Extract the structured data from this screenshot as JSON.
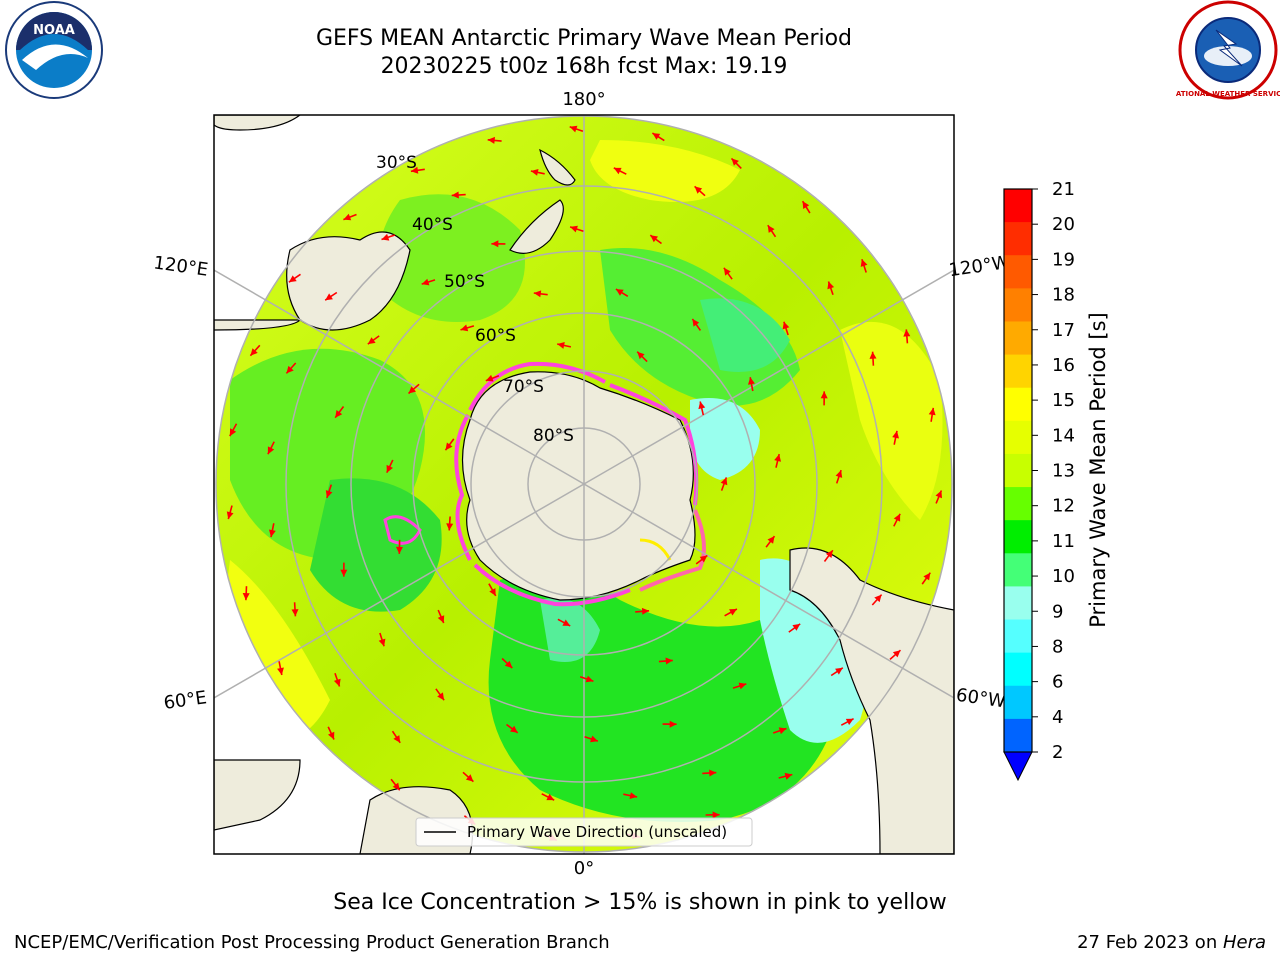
{
  "title": {
    "line1": "GEFS MEAN Antarctic Primary Wave Mean Period",
    "line2": "20230225 t00z 168h fcst   Max: 19.19"
  },
  "map": {
    "projection": "south-polar-stereographic",
    "longitude_labels": [
      "180°",
      "120°E",
      "120°W",
      "60°E",
      "60°W",
      "0°"
    ],
    "latitude_labels": [
      "30°S",
      "40°S",
      "50°S",
      "60°S",
      "70°S",
      "80°S"
    ],
    "legend": "Primary Wave Direction (unscaled)",
    "colors": {
      "land": "#eeecdc",
      "arrow": "#ff0000",
      "grid": "#b0b0b0",
      "sea_ice": "#ff44dd"
    }
  },
  "colorbar": {
    "label": "Primary Wave Mean Period [s]",
    "ticks": [
      "21",
      "20",
      "19",
      "18",
      "17",
      "16",
      "15",
      "14",
      "13",
      "12",
      "11",
      "10",
      "9",
      "8",
      "6",
      "4",
      "2"
    ],
    "colors": [
      "#ff0000",
      "#ff2d00",
      "#ff5a00",
      "#ff8000",
      "#ffaa00",
      "#ffd400",
      "#ffff00",
      "#e6ff00",
      "#c8ff00",
      "#66ff00",
      "#00ee00",
      "#44ff77",
      "#99ffee",
      "#55ffff",
      "#00ffff",
      "#00c8ff",
      "#0064ff"
    ],
    "extend_color": "#0000ff"
  },
  "caption": "Sea Ice Concentration > 15% is shown in pink to yellow",
  "footer": {
    "left": "NCEP/EMC/Verification Post Processing Product Generation Branch",
    "right_prefix": "27 Feb 2023 on ",
    "right_host": "Hera"
  },
  "logos": {
    "noaa": "NOAA",
    "nws": "NATIONAL WEATHER SERVICE"
  }
}
